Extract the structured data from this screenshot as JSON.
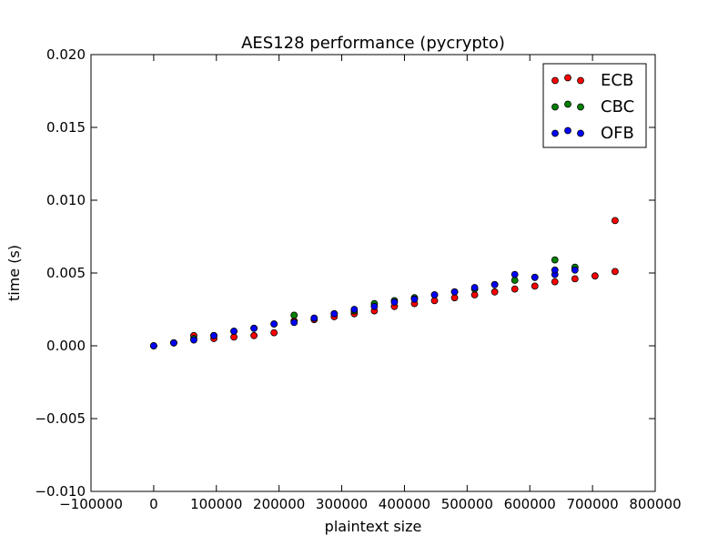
{
  "chart_data": {
    "type": "scatter",
    "title": "AES128 performance (pycrypto)",
    "xlabel": "plaintext size",
    "ylabel": "time (s)",
    "xlim": [
      -100000,
      800000
    ],
    "ylim": [
      -0.01,
      0.02
    ],
    "x_ticks": [
      -100000,
      0,
      100000,
      200000,
      300000,
      400000,
      500000,
      600000,
      700000,
      800000
    ],
    "x_tick_labels": [
      "−100000",
      "0",
      "100000",
      "200000",
      "300000",
      "400000",
      "500000",
      "600000",
      "700000",
      "800000"
    ],
    "y_ticks": [
      -0.01,
      -0.005,
      0.0,
      0.005,
      0.01,
      0.015,
      0.02
    ],
    "y_tick_labels": [
      "−0.010",
      "−0.005",
      "0.000",
      "0.005",
      "0.010",
      "0.015",
      "0.020"
    ],
    "grid": false,
    "legend_position": "top-right",
    "series": [
      {
        "name": "ECB",
        "color": "#ff0000",
        "points": [
          [
            0,
            0.0
          ],
          [
            32000,
            0.0002
          ],
          [
            64000,
            0.0007
          ],
          [
            96000,
            0.0005
          ],
          [
            128000,
            0.0006
          ],
          [
            160000,
            0.0007
          ],
          [
            192000,
            0.0009
          ],
          [
            224000,
            0.0017
          ],
          [
            256000,
            0.0018
          ],
          [
            288000,
            0.002
          ],
          [
            320000,
            0.0022
          ],
          [
            352000,
            0.0024
          ],
          [
            384000,
            0.0027
          ],
          [
            416000,
            0.0029
          ],
          [
            448000,
            0.0031
          ],
          [
            480000,
            0.0033
          ],
          [
            512000,
            0.0035
          ],
          [
            544000,
            0.0037
          ],
          [
            576000,
            0.0039
          ],
          [
            608000,
            0.0041
          ],
          [
            640000,
            0.0044
          ],
          [
            672000,
            0.0046
          ],
          [
            704000,
            0.0048
          ],
          [
            736000,
            0.0051
          ],
          [
            736000,
            0.0086
          ]
        ]
      },
      {
        "name": "CBC",
        "color": "#008000",
        "points": [
          [
            0,
            0.0
          ],
          [
            32000,
            0.0002
          ],
          [
            64000,
            0.0005
          ],
          [
            96000,
            0.0007
          ],
          [
            128000,
            0.001
          ],
          [
            160000,
            0.0012
          ],
          [
            192000,
            0.0015
          ],
          [
            224000,
            0.0021
          ],
          [
            256000,
            0.0019
          ],
          [
            288000,
            0.0022
          ],
          [
            320000,
            0.0024
          ],
          [
            352000,
            0.0029
          ],
          [
            384000,
            0.0031
          ],
          [
            416000,
            0.0033
          ],
          [
            448000,
            0.0035
          ],
          [
            480000,
            0.0037
          ],
          [
            512000,
            0.0039
          ],
          [
            544000,
            0.0042
          ],
          [
            576000,
            0.0045
          ],
          [
            608000,
            0.0047
          ],
          [
            640000,
            0.0059
          ],
          [
            672000,
            0.0054
          ]
        ]
      },
      {
        "name": "OFB",
        "color": "#0000ff",
        "points": [
          [
            0,
            0.0
          ],
          [
            32000,
            0.0002
          ],
          [
            64000,
            0.0004
          ],
          [
            96000,
            0.0007
          ],
          [
            128000,
            0.001
          ],
          [
            160000,
            0.0012
          ],
          [
            192000,
            0.0015
          ],
          [
            224000,
            0.0016
          ],
          [
            256000,
            0.0019
          ],
          [
            288000,
            0.0022
          ],
          [
            320000,
            0.0025
          ],
          [
            352000,
            0.0027
          ],
          [
            384000,
            0.003
          ],
          [
            416000,
            0.0032
          ],
          [
            448000,
            0.0035
          ],
          [
            480000,
            0.0037
          ],
          [
            512000,
            0.004
          ],
          [
            544000,
            0.0042
          ],
          [
            576000,
            0.0049
          ],
          [
            608000,
            0.0047
          ],
          [
            640000,
            0.0049
          ],
          [
            640000,
            0.0052
          ],
          [
            672000,
            0.0052
          ]
        ]
      }
    ]
  }
}
